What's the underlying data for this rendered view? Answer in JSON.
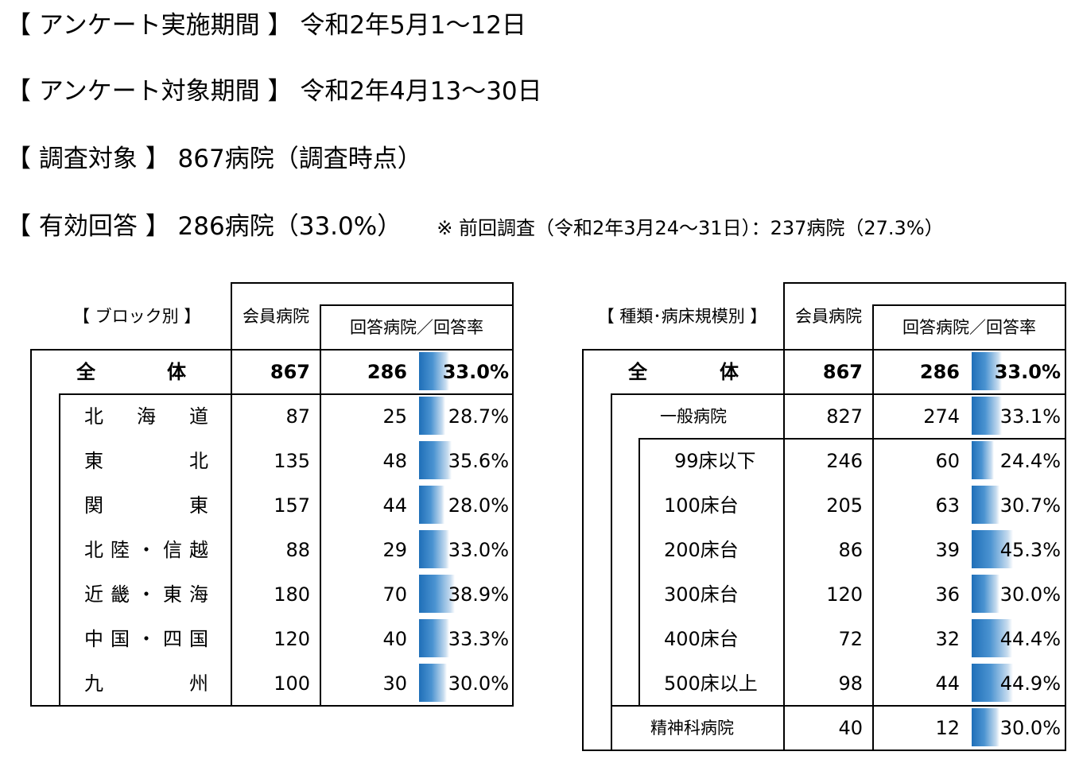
{
  "header": {
    "line1": "【 アンケート実施期間 】 令和2年5月1～12日",
    "line2": "【 アンケート対象期間 】 令和2年4月13～30日",
    "line3": "【 調査対象 】 867病院（調査時点）",
    "line4": "【 有効回答 】 286病院（33.0%）",
    "note": "※ 前回調査（令和2年3月24～31日）：237病院（27.3%）"
  },
  "block": {
    "title": "【 ブロック別 】",
    "col_members": "会員病院",
    "col_response": "回答病院／回答率",
    "total": {
      "label_a": "全",
      "label_b": "体",
      "members": "867",
      "responses": "286",
      "rate": "33.0%",
      "rate_value": 33.0
    },
    "rows": [
      {
        "chars": [
          "北",
          "海",
          "道"
        ],
        "members": "87",
        "responses": "25",
        "rate": "28.7%",
        "rate_value": 28.7
      },
      {
        "chars": [
          "東",
          "北"
        ],
        "members": "135",
        "responses": "48",
        "rate": "35.6%",
        "rate_value": 35.6
      },
      {
        "chars": [
          "関",
          "東"
        ],
        "members": "157",
        "responses": "44",
        "rate": "28.0%",
        "rate_value": 28.0
      },
      {
        "chars": [
          "北",
          "陸",
          "・",
          "信",
          "越"
        ],
        "members": "88",
        "responses": "29",
        "rate": "33.0%",
        "rate_value": 33.0
      },
      {
        "chars": [
          "近",
          "畿",
          "・",
          "東",
          "海"
        ],
        "members": "180",
        "responses": "70",
        "rate": "38.9%",
        "rate_value": 38.9
      },
      {
        "chars": [
          "中",
          "国",
          "・",
          "四",
          "国"
        ],
        "members": "120",
        "responses": "40",
        "rate": "33.3%",
        "rate_value": 33.3
      },
      {
        "chars": [
          "九",
          "州"
        ],
        "members": "100",
        "responses": "30",
        "rate": "30.0%",
        "rate_value": 30.0
      }
    ]
  },
  "type": {
    "title": "【 種類･病床規模別 】",
    "col_members": "会員病院",
    "col_response": "回答病院／回答率",
    "total": {
      "label_a": "全",
      "label_b": "体",
      "members": "867",
      "responses": "286",
      "rate": "33.0%",
      "rate_value": 33.0
    },
    "general": {
      "label": "一般病院",
      "members": "827",
      "responses": "274",
      "rate": "33.1%",
      "rate_value": 33.1
    },
    "sizes": [
      {
        "label": "99床以下",
        "members": "246",
        "responses": "60",
        "rate": "24.4%",
        "rate_value": 24.4
      },
      {
        "label": "100床台",
        "members": "205",
        "responses": "63",
        "rate": "30.7%",
        "rate_value": 30.7
      },
      {
        "label": "200床台",
        "members": "86",
        "responses": "39",
        "rate": "45.3%",
        "rate_value": 45.3
      },
      {
        "label": "300床台",
        "members": "120",
        "responses": "36",
        "rate": "30.0%",
        "rate_value": 30.0
      },
      {
        "label": "400床台",
        "members": "72",
        "responses": "32",
        "rate": "44.4%",
        "rate_value": 44.4
      },
      {
        "label": "500床以上",
        "members": "98",
        "responses": "44",
        "rate": "44.9%",
        "rate_value": 44.9
      }
    ],
    "psych": {
      "label": "精神科病院",
      "members": "40",
      "responses": "12",
      "rate": "30.0%",
      "rate_value": 30.0
    }
  }
}
